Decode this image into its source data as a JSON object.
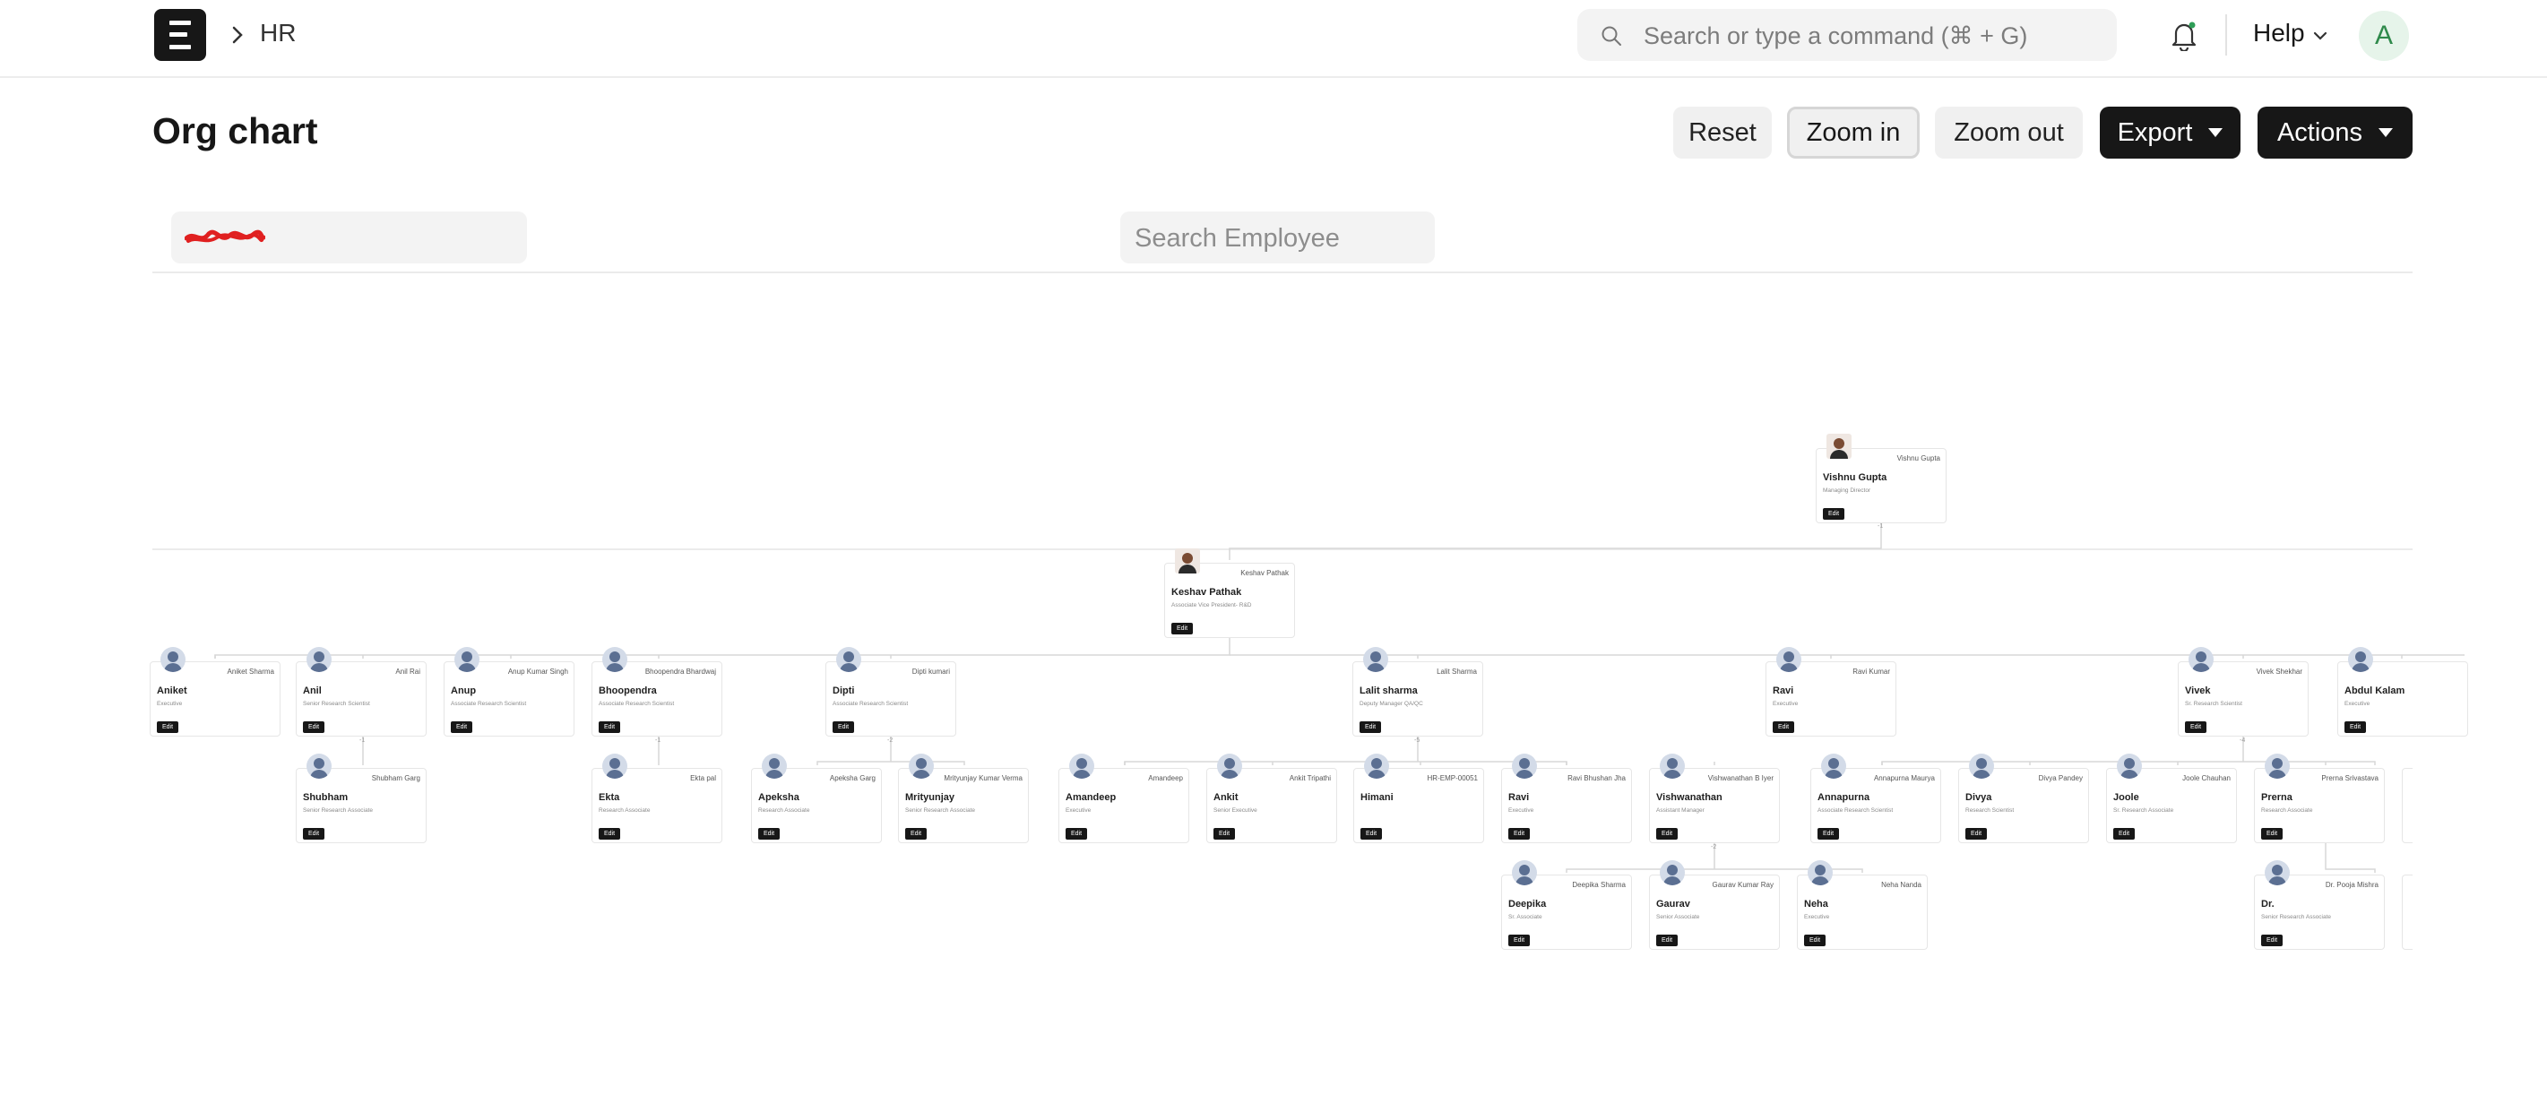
{
  "navbar": {
    "breadcrumb": "HR",
    "search_placeholder": "Search or type a command (⌘ + G)",
    "help_label": "Help",
    "avatar_initial": "A"
  },
  "page": {
    "title": "Org chart",
    "buttons": {
      "reset": "Reset",
      "zoom_in": "Zoom in",
      "zoom_out": "Zoom out",
      "export": "Export",
      "actions": "Actions"
    }
  },
  "filters": {
    "employee_search_placeholder": "Search Employee"
  },
  "org": {
    "root": {
      "name": "Vishnu Gupta",
      "full": "Vishnu Gupta",
      "designation": "Managing Director",
      "edit": "Edit"
    },
    "lvl1": {
      "name": "Keshav Pathak",
      "full": "Keshav Pathak",
      "designation": "Associate Vice President- R&D",
      "edit": "Edit"
    },
    "lvl2": [
      {
        "name": "Aniket",
        "full": "Aniket Sharma",
        "designation": "Executive",
        "edit": "Edit"
      },
      {
        "name": "Anil",
        "full": "Anil Rai",
        "designation": "Senior Research Scientist",
        "edit": "Edit"
      },
      {
        "name": "Anup",
        "full": "Anup Kumar Singh",
        "designation": "Associate Research Scientist",
        "edit": "Edit"
      },
      {
        "name": "Bhoopendra",
        "full": "Bhoopendra Bhardwaj",
        "designation": "Associate Research Scientist",
        "edit": "Edit"
      },
      {
        "name": "Dipti",
        "full": "Dipti kumari",
        "designation": "Associate Research Scientist",
        "edit": "Edit"
      },
      {
        "name": "Lalit sharma",
        "full": "Lalit Sharma",
        "designation": "Deputy Manager QA/QC",
        "edit": "Edit"
      },
      {
        "name": "Ravi",
        "full": "Ravi Kumar",
        "designation": "Executive",
        "edit": "Edit"
      },
      {
        "name": "Vivek",
        "full": "Vivek Shekhar",
        "designation": "Sr. Research Scientist",
        "edit": "Edit"
      },
      {
        "name": "Abdul Kalam",
        "full": "",
        "designation": "Executive",
        "edit": "Edit"
      }
    ],
    "lvl3": [
      {
        "name": "Shubham",
        "full": "Shubham Garg",
        "designation": "Senior Research Associate",
        "edit": "Edit"
      },
      {
        "name": "Ekta",
        "full": "Ekta pal",
        "designation": "Research Associate",
        "edit": "Edit"
      },
      {
        "name": "Apeksha",
        "full": "Apeksha Garg",
        "designation": "Research Associate",
        "edit": "Edit"
      },
      {
        "name": "Mrityunjay",
        "full": "Mrityunjay Kumar Verma",
        "designation": "Senior Research Associate",
        "edit": "Edit"
      },
      {
        "name": "Amandeep",
        "full": "Amandeep",
        "designation": "Executive",
        "edit": "Edit"
      },
      {
        "name": "Ankit",
        "full": "Ankit Tripathi",
        "designation": "Senior Executive",
        "edit": "Edit"
      },
      {
        "name": "Himani",
        "full": "HR-EMP-00051",
        "designation": "",
        "edit": "Edit"
      },
      {
        "name": "Ravi",
        "full": "Ravi Bhushan Jha",
        "designation": "Executive",
        "edit": "Edit"
      },
      {
        "name": "Vishwanathan",
        "full": "Vishwanathan B Iyer",
        "designation": "Assistant Manager",
        "edit": "Edit"
      },
      {
        "name": "Annapurna",
        "full": "Annapurna Maurya",
        "designation": "Associate Research Scientist",
        "edit": "Edit"
      },
      {
        "name": "Divya",
        "full": "Divya Pandey",
        "designation": "Research Scientist",
        "edit": "Edit"
      },
      {
        "name": "Joole",
        "full": "Joole Chauhan",
        "designation": "Sr. Research Associate",
        "edit": "Edit"
      },
      {
        "name": "Prerna",
        "full": "Prerna Srivastava",
        "designation": "Research Associate",
        "edit": "Edit"
      }
    ],
    "lvl4": [
      {
        "name": "Deepika",
        "full": "Deepika Sharma",
        "designation": "Sr. Associate",
        "edit": "Edit"
      },
      {
        "name": "Gaurav",
        "full": "Gaurav Kumar Ray",
        "designation": "Senior Associate",
        "edit": "Edit"
      },
      {
        "name": "Neha",
        "full": "Neha Nanda",
        "designation": "Executive",
        "edit": "Edit"
      },
      {
        "name": "Dr.",
        "full": "Dr. Pooja Mishra",
        "designation": "Senior Research Associate",
        "edit": "Edit"
      }
    ]
  }
}
